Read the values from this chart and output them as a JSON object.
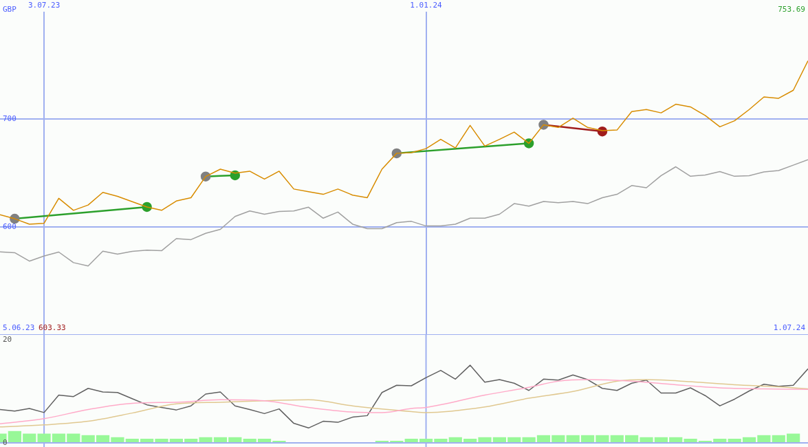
{
  "chart_data": [
    {
      "type": "line",
      "ylabel": "GBP",
      "xlim": [
        "2023-06-12",
        "2024-07-01"
      ],
      "ylim": [
        500,
        799
      ],
      "xticks": [
        {
          "value": "2023-07-03",
          "label": "3.07.23"
        },
        {
          "value": "2024-01-01",
          "label": "1.01.24"
        }
      ],
      "yticks": [
        600,
        700
      ],
      "grid": true,
      "legend": false,
      "annotations": [
        "5.06.23",
        "603.33",
        "753.69",
        "1.07.24"
      ],
      "x": [
        "2023-06-12",
        "2023-06-19",
        "2023-06-26",
        "2023-07-03",
        "2023-07-10",
        "2023-07-17",
        "2023-07-24",
        "2023-07-31",
        "2023-08-07",
        "2023-08-14",
        "2023-08-21",
        "2023-08-28",
        "2023-09-04",
        "2023-09-11",
        "2023-09-18",
        "2023-09-25",
        "2023-10-02",
        "2023-10-09",
        "2023-10-16",
        "2023-10-23",
        "2023-10-30",
        "2023-11-06",
        "2023-11-13",
        "2023-11-20",
        "2023-11-27",
        "2023-12-04",
        "2023-12-11",
        "2023-12-18",
        "2023-12-25",
        "2024-01-01",
        "2024-01-08",
        "2024-01-15",
        "2024-01-22",
        "2024-01-29",
        "2024-02-05",
        "2024-02-12",
        "2024-02-19",
        "2024-02-26",
        "2024-03-04",
        "2024-03-11",
        "2024-03-18",
        "2024-03-25",
        "2024-04-01",
        "2024-04-08",
        "2024-04-15",
        "2024-04-22",
        "2024-04-29",
        "2024-05-06",
        "2024-05-13",
        "2024-05-20",
        "2024-05-27",
        "2024-06-03",
        "2024-06-10",
        "2024-06-17",
        "2024-06-24",
        "2024-07-01"
      ],
      "series": [
        {
          "color": "#d88c00",
          "marker": "none",
          "values": [
            611.2,
            607.5,
            602.5,
            603.33,
            626.4,
            615.3,
            620.2,
            631.9,
            628.2,
            623.3,
            618.4,
            615.3,
            623.9,
            627.0,
            646.6,
            653.4,
            649.7,
            651.5,
            644.2,
            651.5,
            635.0,
            632.5,
            630.1,
            635.0,
            629.4,
            627.0,
            653.4,
            668.1,
            668.7,
            672.4,
            681.0,
            673.0,
            693.9,
            674.8,
            681.0,
            687.7,
            677.3,
            694.5,
            692.0,
            700.6,
            692.0,
            689.0,
            689.6,
            706.7,
            708.6,
            705.5,
            713.5,
            711.0,
            703.1,
            692.6,
            698.2,
            708.6,
            720.2,
            719.0,
            726.4,
            753.69
          ]
        },
        {
          "color": "#a0a0a0",
          "marker": "none",
          "values": [
            576.9,
            576.1,
            568.3,
            573.0,
            576.7,
            566.9,
            563.8,
            577.5,
            574.8,
            577.3,
            578.5,
            577.9,
            589.1,
            588.2,
            594.0,
            597.7,
            609.6,
            614.7,
            611.7,
            614.3,
            614.7,
            618.2,
            608.0,
            613.7,
            602.5,
            598.3,
            598.3,
            603.9,
            605.1,
            600.8,
            600.8,
            602.5,
            608.0,
            608.0,
            611.7,
            621.5,
            619.2,
            623.5,
            622.3,
            623.5,
            621.5,
            627.0,
            630.1,
            638.2,
            636.2,
            647.4,
            655.6,
            646.8,
            648.0,
            651.1,
            646.8,
            647.4,
            650.9,
            652.1,
            657.1,
            662.1
          ]
        },
        {
          "color": "#2ca02c",
          "marker": "circle",
          "colors": [
            "#808080",
            "#2ca02c"
          ],
          "x": [
            "2023-06-19",
            "2023-08-21"
          ],
          "values": [
            607.5,
            618.4
          ]
        },
        {
          "color": "#2ca02c",
          "marker": "circle",
          "colors": [
            "#808080",
            "#2ca02c"
          ],
          "x": [
            "2023-09-18",
            "2023-10-02"
          ],
          "values": [
            646.6,
            647.7
          ]
        },
        {
          "color": "#2ca02c",
          "marker": "circle",
          "colors": [
            "#808080",
            "#2ca02c"
          ],
          "x": [
            "2023-12-18",
            "2024-02-19"
          ],
          "values": [
            668.1,
            677.3
          ]
        },
        {
          "color": "#a01c1c",
          "marker": "circle",
          "colors": [
            "#808080",
            "#a01c1c"
          ],
          "x": [
            "2024-02-26",
            "2024-03-25"
          ],
          "values": [
            694.5,
            688.3
          ]
        }
      ]
    },
    {
      "type": "line",
      "xlim": [
        "2023-06-12",
        "2024-07-01"
      ],
      "ylim": [
        0,
        21
      ],
      "yticks": [
        0,
        20
      ],
      "ref_lines": [
        {
          "axis": "x",
          "value": "2023-07-03",
          "color": "#a0b0f0"
        },
        {
          "axis": "x",
          "value": "2024-01-01",
          "color": "#a0b0f0"
        }
      ],
      "tick_labels": "y",
      "legend": false,
      "x": [
        "2023-06-12",
        "2023-06-19",
        "2023-06-26",
        "2023-07-03",
        "2023-07-10",
        "2023-07-17",
        "2023-07-24",
        "2023-07-31",
        "2023-08-07",
        "2023-08-14",
        "2023-08-21",
        "2023-08-28",
        "2023-09-04",
        "2023-09-11",
        "2023-09-18",
        "2023-09-25",
        "2023-10-02",
        "2023-10-09",
        "2023-10-16",
        "2023-10-23",
        "2023-10-30",
        "2023-11-06",
        "2023-11-13",
        "2023-11-20",
        "2023-11-27",
        "2023-12-04",
        "2023-12-11",
        "2023-12-18",
        "2023-12-25",
        "2024-01-01",
        "2024-01-08",
        "2024-01-15",
        "2024-01-22",
        "2024-01-29",
        "2024-02-05",
        "2024-02-12",
        "2024-02-19",
        "2024-02-26",
        "2024-03-04",
        "2024-03-11",
        "2024-03-18",
        "2024-03-25",
        "2024-04-01",
        "2024-04-08",
        "2024-04-15",
        "2024-04-22",
        "2024-04-29",
        "2024-05-06",
        "2024-05-13",
        "2024-05-20",
        "2024-05-27",
        "2024-06-03",
        "2024-06-10",
        "2024-06-17",
        "2024-06-24",
        "2024-07-01"
      ],
      "series": [
        {
          "type": "bar",
          "color": "#98f898",
          "values": [
            1.8,
            2.3,
            1.8,
            1.8,
            1.8,
            1.8,
            1.5,
            1.5,
            1.1,
            0.8,
            0.8,
            0.8,
            0.8,
            0.8,
            1.1,
            1.1,
            1.1,
            0.8,
            0.8,
            0.4,
            0,
            0,
            0,
            0,
            0,
            0,
            0.4,
            0.4,
            0.8,
            0.8,
            0.8,
            1.1,
            0.8,
            1.1,
            1.1,
            1.1,
            1.1,
            1.5,
            1.5,
            1.5,
            1.5,
            1.5,
            1.5,
            1.5,
            1.1,
            1.1,
            1.1,
            0.8,
            0.4,
            0.8,
            0.8,
            1.1,
            1.5,
            1.5,
            1.8,
            null
          ]
        },
        {
          "color": "#ffaac8",
          "marker": "none",
          "x": [
            "2023-06-12",
            "2023-07-03",
            "2023-07-24",
            "2023-08-14",
            "2023-09-04",
            "2023-09-25",
            "2023-10-16",
            "2023-11-06",
            "2023-11-27",
            "2023-12-11",
            "2023-12-25",
            "2024-01-01",
            "2024-01-29",
            "2024-02-19",
            "2024-03-04",
            "2024-03-18",
            "2024-04-08",
            "2024-04-29",
            "2024-05-20",
            "2024-06-10",
            "2024-07-01"
          ],
          "values": [
            3.7,
            4.7,
            6.5,
            7.7,
            7.9,
            8.4,
            8.2,
            6.9,
            6.0,
            5.9,
            6.7,
            6.9,
            9.3,
            10.8,
            12.0,
            12.3,
            12.0,
            11.3,
            10.7,
            10.5,
            10.4
          ]
        },
        {
          "color": "#e0c890",
          "marker": "none",
          "x": [
            "2023-06-12",
            "2023-07-03",
            "2023-07-24",
            "2023-08-14",
            "2023-09-04",
            "2023-09-25",
            "2023-10-16",
            "2023-11-06",
            "2023-11-27",
            "2023-12-25",
            "2024-01-01",
            "2024-01-29",
            "2024-02-19",
            "2024-03-11",
            "2024-04-01",
            "2024-04-15",
            "2024-05-06",
            "2024-05-27",
            "2024-06-17",
            "2024-07-01"
          ],
          "values": [
            3.1,
            3.5,
            4.2,
            5.8,
            7.6,
            7.9,
            8.2,
            8.4,
            7.2,
            6.1,
            5.9,
            7.0,
            8.7,
            10.0,
            12.0,
            12.3,
            11.9,
            11.3,
            10.9,
            10.5
          ]
        },
        {
          "color": "#606060",
          "marker": "none",
          "values": [
            6.5,
            6.2,
            6.7,
            5.9,
            9.3,
            9.0,
            10.6,
            9.9,
            9.8,
            8.6,
            7.4,
            6.9,
            6.4,
            7.2,
            9.5,
            9.9,
            7.2,
            6.5,
            5.7,
            6.6,
            3.8,
            2.9,
            4.2,
            4.0,
            5.0,
            5.3,
            9.8,
            11.2,
            11.1,
            12.7,
            14.1,
            12.4,
            15.1,
            11.8,
            12.3,
            11.6,
            10.2,
            12.4,
            12.2,
            13.2,
            12.3,
            10.6,
            10.2,
            11.6,
            12.2,
            9.7,
            9.7,
            10.7,
            9.2,
            7.2,
            8.5,
            10.1,
            11.4,
            11.0,
            11.2,
            14.4
          ]
        }
      ]
    }
  ]
}
